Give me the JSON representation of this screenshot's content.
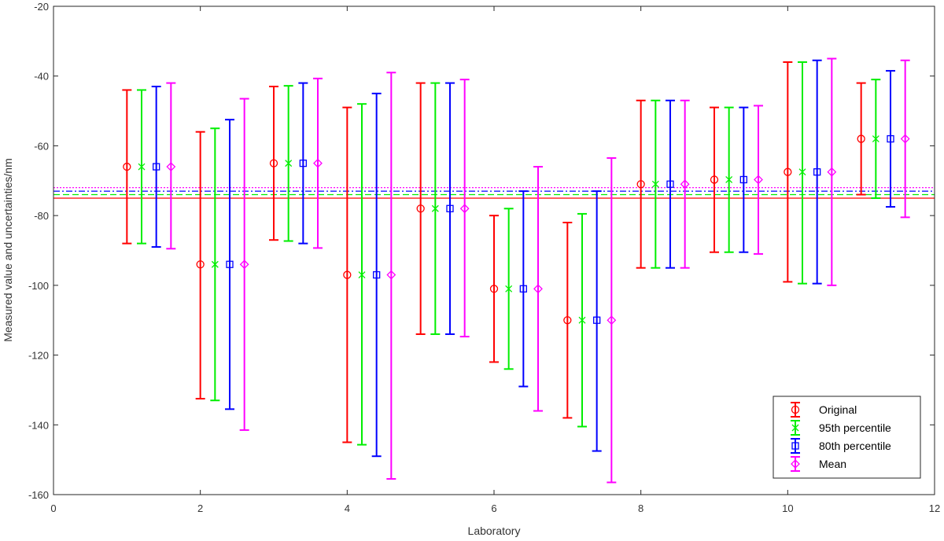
{
  "chart_data": {
    "type": "scatter",
    "title": "",
    "xlabel": "Laboratory",
    "ylabel": "Measured value and uncertainties/nm",
    "xlim": [
      0,
      12
    ],
    "ylim": [
      -160,
      -20
    ],
    "xticks": [
      0,
      2,
      4,
      6,
      8,
      10,
      12
    ],
    "yticks": [
      -20,
      -40,
      -60,
      -80,
      -100,
      -120,
      -140,
      -160
    ],
    "grid": false,
    "legend_position": "bottom-right",
    "x_offsets": [
      0,
      0.2,
      0.4,
      0.6
    ],
    "series": [
      {
        "name": "Original",
        "color": "#ff0000",
        "marker": "circle",
        "x": [
          1,
          2,
          3,
          4,
          5,
          6,
          7,
          8,
          9,
          10,
          11
        ],
        "values": [
          -66,
          -94,
          -65,
          -97,
          -78,
          -101,
          -110,
          -71,
          -69.7,
          -67.5,
          -58
        ],
        "lower": [
          -88,
          -132.5,
          -87,
          -145,
          -114,
          -122,
          -138,
          -95,
          -90.5,
          -99,
          -74
        ],
        "upper": [
          -44,
          -56,
          -43,
          -49,
          -42,
          -80,
          -82,
          -47,
          -49,
          -36,
          -42
        ],
        "reference_line": -75,
        "reference_style": "solid"
      },
      {
        "name": "95th percentile",
        "color": "#00ee00",
        "marker": "x",
        "x": [
          1,
          2,
          3,
          4,
          5,
          6,
          7,
          8,
          9,
          10,
          11
        ],
        "values": [
          -66,
          -94,
          -65,
          -97,
          -78,
          -101,
          -110,
          -71,
          -69.7,
          -67.5,
          -58
        ],
        "lower": [
          -88,
          -133,
          -87.3,
          -145.7,
          -114,
          -124,
          -140.5,
          -95,
          -90.5,
          -99.5,
          -75
        ],
        "upper": [
          -44,
          -55,
          -42.8,
          -48,
          -42,
          -78,
          -79.5,
          -47,
          -49,
          -36,
          -41
        ],
        "reference_line": -74,
        "reference_style": "dashed"
      },
      {
        "name": "80th percentile",
        "color": "#0000ff",
        "marker": "square",
        "x": [
          1,
          2,
          3,
          4,
          5,
          6,
          7,
          8,
          9,
          10,
          11
        ],
        "values": [
          -66,
          -94,
          -65,
          -97,
          -78,
          -101,
          -110,
          -71,
          -69.7,
          -67.5,
          -58
        ],
        "lower": [
          -89,
          -135.5,
          -88,
          -149,
          -114,
          -129,
          -147.5,
          -95,
          -90.5,
          -99.5,
          -77.5
        ],
        "upper": [
          -43,
          -52.5,
          -42,
          -45,
          -42,
          -73,
          -73,
          -47,
          -49,
          -35.5,
          -38.5
        ],
        "reference_line": -73,
        "reference_style": "dashdot"
      },
      {
        "name": "Mean",
        "color": "#ff00ff",
        "marker": "diamond",
        "x": [
          1,
          2,
          3,
          4,
          5,
          6,
          7,
          8,
          9,
          10,
          11
        ],
        "values": [
          -66,
          -94,
          -65,
          -97,
          -78,
          -101,
          -110,
          -71,
          -69.7,
          -67.5,
          -58
        ],
        "lower": [
          -89.5,
          -141.5,
          -89.3,
          -155.5,
          -114.7,
          -136,
          -156.5,
          -95,
          -91,
          -100,
          -80.5
        ],
        "upper": [
          -42,
          -46.5,
          -40.7,
          -39,
          -41,
          -66,
          -63.5,
          -47,
          -48.5,
          -35,
          -35.5
        ],
        "reference_line": -72,
        "reference_style": "dotted"
      }
    ]
  }
}
